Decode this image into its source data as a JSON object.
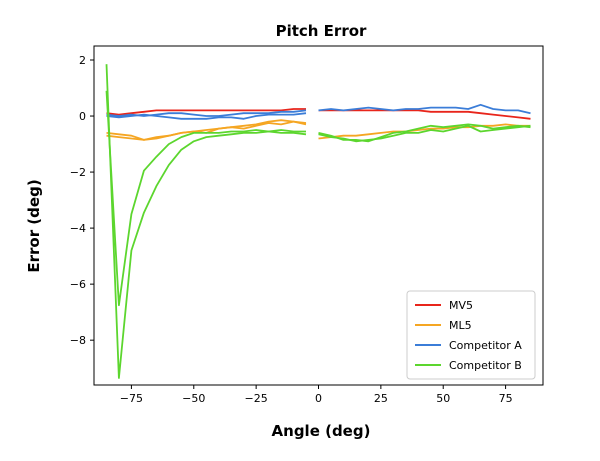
{
  "chart_data": {
    "type": "line",
    "title": "Pitch Error",
    "xlabel": "Angle (deg)",
    "ylabel": "Error (deg)",
    "xlim": [
      -90,
      90
    ],
    "ylim": [
      -9.6,
      2.5
    ],
    "xticks": [
      -75,
      -50,
      -25,
      0,
      25,
      50,
      75
    ],
    "yticks": [
      2,
      0,
      -2,
      -4,
      -6,
      -8
    ],
    "legend_position": "bottom-right",
    "series": [
      {
        "name": "MV5",
        "color": "#e8251b",
        "lines": [
          {
            "x": [
              -85,
              -80,
              -75,
              -70,
              -65,
              -60,
              -55,
              -50,
              -45,
              -40,
              -35,
              -30,
              -25,
              -20,
              -15,
              -10,
              -5
            ],
            "y": [
              0.1,
              0.05,
              0.1,
              0.15,
              0.2,
              0.2,
              0.2,
              0.2,
              0.2,
              0.2,
              0.2,
              0.2,
              0.2,
              0.2,
              0.2,
              0.25,
              0.25
            ]
          },
          {
            "x": [
              0,
              5,
              10,
              15,
              20,
              25,
              30,
              35,
              40,
              45,
              50,
              55,
              60,
              65,
              70,
              75,
              80,
              85
            ],
            "y": [
              0.2,
              0.2,
              0.2,
              0.2,
              0.2,
              0.2,
              0.2,
              0.2,
              0.2,
              0.15,
              0.15,
              0.15,
              0.15,
              0.1,
              0.05,
              0.0,
              -0.05,
              -0.1
            ]
          }
        ]
      },
      {
        "name": "ML5",
        "color": "#f5a623",
        "lines": [
          {
            "x": [
              -85,
              -80,
              -75,
              -70,
              -65,
              -60,
              -55,
              -50,
              -45,
              -40,
              -35,
              -30,
              -25,
              -20,
              -15,
              -10,
              -5
            ],
            "y": [
              -0.7,
              -0.75,
              -0.8,
              -0.85,
              -0.75,
              -0.7,
              -0.6,
              -0.55,
              -0.5,
              -0.45,
              -0.4,
              -0.35,
              -0.3,
              -0.2,
              -0.15,
              -0.2,
              -0.25
            ]
          },
          {
            "x": [
              -85,
              -80,
              -75,
              -70,
              -65,
              -60,
              -55,
              -50,
              -45,
              -40,
              -35,
              -30,
              -25,
              -20,
              -15,
              -10,
              -5
            ],
            "y": [
              -0.6,
              -0.65,
              -0.7,
              -0.85,
              -0.8,
              -0.7,
              -0.6,
              -0.55,
              -0.6,
              -0.45,
              -0.4,
              -0.45,
              -0.35,
              -0.25,
              -0.3,
              -0.2,
              -0.3
            ]
          },
          {
            "x": [
              0,
              5,
              10,
              15,
              20,
              25,
              30,
              35,
              40,
              45,
              50,
              55,
              60,
              65,
              70,
              75,
              80,
              85
            ],
            "y": [
              -0.8,
              -0.75,
              -0.7,
              -0.7,
              -0.65,
              -0.6,
              -0.55,
              -0.55,
              -0.5,
              -0.45,
              -0.45,
              -0.4,
              -0.4,
              -0.35,
              -0.35,
              -0.3,
              -0.35,
              -0.35
            ]
          }
        ]
      },
      {
        "name": "Competitor A",
        "color": "#3b7dd8",
        "lines": [
          {
            "x": [
              -85,
              -80,
              -75,
              -70,
              -65,
              -60,
              -55,
              -50,
              -45,
              -40,
              -35,
              -30,
              -25,
              -20,
              -15,
              -10,
              -5
            ],
            "y": [
              0.0,
              -0.05,
              0.0,
              0.05,
              0.0,
              -0.05,
              -0.1,
              -0.1,
              -0.1,
              -0.05,
              -0.05,
              -0.1,
              0.0,
              0.05,
              0.05,
              0.05,
              0.1
            ]
          },
          {
            "x": [
              -85,
              -80,
              -75,
              -70,
              -65,
              -60,
              -55,
              -50,
              -45,
              -40,
              -35,
              -30,
              -25,
              -20,
              -15,
              -10,
              -5
            ],
            "y": [
              0.05,
              0.0,
              0.05,
              0.0,
              0.05,
              0.1,
              0.1,
              0.05,
              0.0,
              0.0,
              0.05,
              0.1,
              0.1,
              0.1,
              0.15,
              0.15,
              0.2
            ]
          },
          {
            "x": [
              0,
              5,
              10,
              15,
              20,
              25,
              30,
              35,
              40,
              45,
              50,
              55,
              60,
              65,
              70,
              75,
              80,
              85
            ],
            "y": [
              0.2,
              0.25,
              0.2,
              0.25,
              0.3,
              0.25,
              0.2,
              0.25,
              0.25,
              0.3,
              0.3,
              0.3,
              0.25,
              0.4,
              0.25,
              0.2,
              0.2,
              0.1
            ]
          }
        ]
      },
      {
        "name": "Competitor B",
        "color": "#5cd62e",
        "lines": [
          {
            "x": [
              -85,
              -80,
              -75,
              -70,
              -65,
              -60,
              -55,
              -50,
              -45,
              -40,
              -35,
              -30,
              -25,
              -20,
              -15,
              -10,
              -5
            ],
            "y": [
              1.85,
              -9.35,
              -4.8,
              -3.45,
              -2.5,
              -1.75,
              -1.2,
              -0.9,
              -0.75,
              -0.7,
              -0.65,
              -0.6,
              -0.6,
              -0.55,
              -0.5,
              -0.55,
              -0.55
            ]
          },
          {
            "x": [
              -85,
              -80,
              -75,
              -70,
              -65,
              -60,
              -55,
              -50,
              -45,
              -40,
              -35,
              -30,
              -25,
              -20,
              -15,
              -10,
              -5
            ],
            "y": [
              0.9,
              -6.75,
              -3.5,
              -1.95,
              -1.45,
              -1.0,
              -0.75,
              -0.6,
              -0.6,
              -0.6,
              -0.55,
              -0.55,
              -0.5,
              -0.55,
              -0.6,
              -0.6,
              -0.65
            ]
          },
          {
            "x": [
              0,
              5,
              10,
              15,
              20,
              25,
              30,
              35,
              40,
              45,
              50,
              55,
              60,
              65,
              70,
              75,
              80,
              85
            ],
            "y": [
              -0.6,
              -0.7,
              -0.85,
              -0.85,
              -0.9,
              -0.75,
              -0.6,
              -0.55,
              -0.45,
              -0.35,
              -0.4,
              -0.35,
              -0.3,
              -0.35,
              -0.45,
              -0.4,
              -0.35,
              -0.4
            ]
          },
          {
            "x": [
              0,
              5,
              10,
              15,
              20,
              25,
              30,
              35,
              40,
              45,
              50,
              55,
              60,
              65,
              70,
              75,
              80,
              85
            ],
            "y": [
              -0.65,
              -0.75,
              -0.8,
              -0.9,
              -0.85,
              -0.8,
              -0.7,
              -0.6,
              -0.6,
              -0.5,
              -0.55,
              -0.45,
              -0.35,
              -0.55,
              -0.5,
              -0.45,
              -0.4,
              -0.35
            ]
          }
        ]
      }
    ]
  }
}
